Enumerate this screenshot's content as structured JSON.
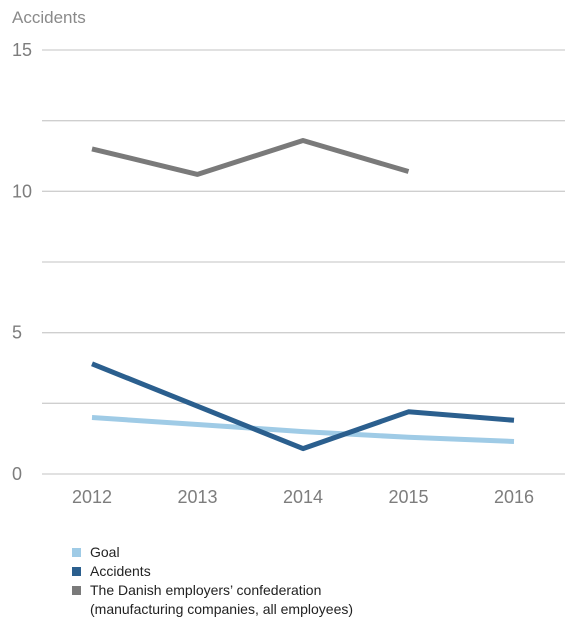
{
  "chart_data": {
    "type": "line",
    "ylabel": "Accidents",
    "ylim": [
      0,
      15
    ],
    "yticks": [
      0,
      5,
      10,
      15
    ],
    "gridlines": [
      0,
      2.5,
      5,
      7.5,
      10,
      12.5,
      15
    ],
    "grid": true,
    "legend_position": "bottom-left",
    "categories": [
      "2012",
      "2013",
      "2014",
      "2015",
      "2016"
    ],
    "series": [
      {
        "name": "Goal",
        "color": "#9fcbe6",
        "values": [
          2.0,
          1.75,
          1.5,
          1.3,
          1.15
        ]
      },
      {
        "name": "Accidents",
        "color": "#2b5f8e",
        "values": [
          3.9,
          2.4,
          0.9,
          2.2,
          1.9
        ]
      },
      {
        "name": "The Danish employers’ confederation\n(manufacturing companies, all employees)",
        "color": "#7a7a7a",
        "values": [
          11.5,
          10.6,
          11.8,
          10.7,
          null
        ]
      }
    ]
  }
}
